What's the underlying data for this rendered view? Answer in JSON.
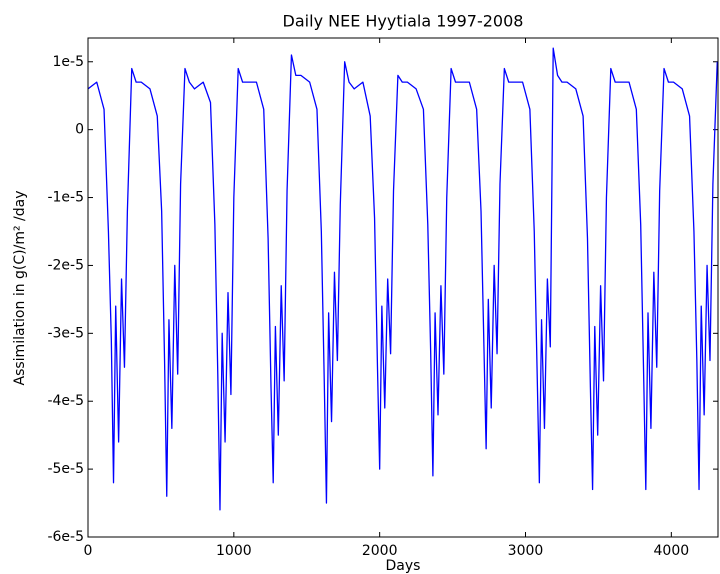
{
  "chart_data": {
    "type": "line",
    "title": "Daily NEE Hyytiala 1997-2008",
    "xlabel": "Days",
    "ylabel": "Assimilation in g(C)/m² /day",
    "xlim": [
      0,
      4320
    ],
    "ylim": [
      -6e-05,
      1.35e-05
    ],
    "xticks": [
      0,
      1000,
      2000,
      3000,
      4000
    ],
    "yticks": [
      {
        "value": -6e-05,
        "label": "-6e-5"
      },
      {
        "value": -5e-05,
        "label": "-5e-5"
      },
      {
        "value": -4e-05,
        "label": "-4e-5"
      },
      {
        "value": -3e-05,
        "label": "-3e-5"
      },
      {
        "value": -2e-05,
        "label": "-2e-5"
      },
      {
        "value": -1e-05,
        "label": "-1e-5"
      },
      0,
      {
        "value": 1e-05,
        "label": "1e-5"
      }
    ],
    "grid": false,
    "x": [
      0,
      60,
      110,
      140,
      160,
      175,
      190,
      210,
      230,
      250,
      270,
      300,
      330,
      365,
      425,
      475,
      505,
      525,
      540,
      555,
      575,
      595,
      615,
      635,
      665,
      695,
      730,
      790,
      840,
      870,
      890,
      905,
      920,
      940,
      960,
      980,
      1000,
      1030,
      1060,
      1095,
      1155,
      1205,
      1235,
      1255,
      1270,
      1285,
      1305,
      1325,
      1345,
      1365,
      1395,
      1425,
      1460,
      1520,
      1570,
      1600,
      1620,
      1635,
      1650,
      1670,
      1690,
      1710,
      1730,
      1760,
      1790,
      1825,
      1885,
      1935,
      1965,
      1985,
      2000,
      2015,
      2035,
      2055,
      2075,
      2095,
      2125,
      2155,
      2190,
      2250,
      2300,
      2330,
      2350,
      2365,
      2380,
      2400,
      2420,
      2440,
      2460,
      2490,
      2520,
      2555,
      2615,
      2665,
      2695,
      2715,
      2730,
      2745,
      2765,
      2785,
      2805,
      2825,
      2855,
      2885,
      2920,
      2980,
      3030,
      3060,
      3080,
      3095,
      3110,
      3130,
      3150,
      3170,
      3190,
      3220,
      3250,
      3285,
      3345,
      3395,
      3425,
      3445,
      3460,
      3475,
      3495,
      3515,
      3535,
      3555,
      3585,
      3615,
      3650,
      3710,
      3760,
      3790,
      3810,
      3825,
      3840,
      3860,
      3880,
      3900,
      3920,
      3950,
      3980,
      4015,
      4075,
      4125,
      4155,
      4175,
      4190,
      4205,
      4225,
      4245,
      4265,
      4285,
      4315
    ],
    "series": [
      {
        "name": "NEE",
        "color": "#0000ff",
        "values": [
          6e-06,
          7e-06,
          3e-06,
          -1.5e-05,
          -3.1e-05,
          -5.2e-05,
          -2.6e-05,
          -4.6e-05,
          -2.2e-05,
          -3.5e-05,
          -1.2e-05,
          9e-06,
          7e-06,
          7e-06,
          6e-06,
          2e-06,
          -1.2e-05,
          -3.4e-05,
          -5.4e-05,
          -2.8e-05,
          -4.4e-05,
          -2e-05,
          -3.6e-05,
          -8e-06,
          9e-06,
          7e-06,
          6e-06,
          7e-06,
          4e-06,
          -1.4e-05,
          -3.6e-05,
          -5.6e-05,
          -3e-05,
          -4.6e-05,
          -2.4e-05,
          -3.9e-05,
          -1e-05,
          9e-06,
          7e-06,
          7e-06,
          7e-06,
          3e-06,
          -1.6e-05,
          -3.8e-05,
          -5.2e-05,
          -2.9e-05,
          -4.5e-05,
          -2.3e-05,
          -3.7e-05,
          -9e-06,
          1.1e-05,
          8e-06,
          8e-06,
          7e-06,
          3e-06,
          -1.5e-05,
          -3.7e-05,
          -5.5e-05,
          -2.7e-05,
          -4.3e-05,
          -2.1e-05,
          -3.4e-05,
          -1.1e-05,
          1e-05,
          7e-06,
          6e-06,
          7e-06,
          2e-06,
          -1.3e-05,
          -3.5e-05,
          -5e-05,
          -2.6e-05,
          -4.1e-05,
          -2.2e-05,
          -3.3e-05,
          -9e-06,
          8e-06,
          7e-06,
          7e-06,
          6e-06,
          3e-06,
          -1.4e-05,
          -3.3e-05,
          -5.1e-05,
          -2.7e-05,
          -4.2e-05,
          -2.3e-05,
          -3.6e-05,
          -1e-05,
          9e-06,
          7e-06,
          7e-06,
          7e-06,
          3e-06,
          -1.2e-05,
          -3.2e-05,
          -4.7e-05,
          -2.5e-05,
          -4.1e-05,
          -2e-05,
          -3.3e-05,
          -8e-06,
          9e-06,
          7e-06,
          7e-06,
          7e-06,
          3e-06,
          -1.5e-05,
          -3.6e-05,
          -5.2e-05,
          -2.8e-05,
          -4.4e-05,
          -2.2e-05,
          -3.2e-05,
          1.2e-05,
          8e-06,
          7e-06,
          7e-06,
          6e-06,
          2e-06,
          -1.6e-05,
          -3.8e-05,
          -5.3e-05,
          -2.9e-05,
          -4.5e-05,
          -2.3e-05,
          -3.7e-05,
          -1e-05,
          9e-06,
          7e-06,
          7e-06,
          7e-06,
          3e-06,
          -1.4e-05,
          -3.6e-05,
          -5.3e-05,
          -2.7e-05,
          -4.4e-05,
          -2.1e-05,
          -3.5e-05,
          -9e-06,
          9e-06,
          7e-06,
          7e-06,
          6e-06,
          2e-06,
          -1.5e-05,
          -3.4e-05,
          -5.3e-05,
          -2.6e-05,
          -4.2e-05,
          -2e-05,
          -3.4e-05,
          -8e-06,
          1e-05
        ]
      }
    ]
  }
}
